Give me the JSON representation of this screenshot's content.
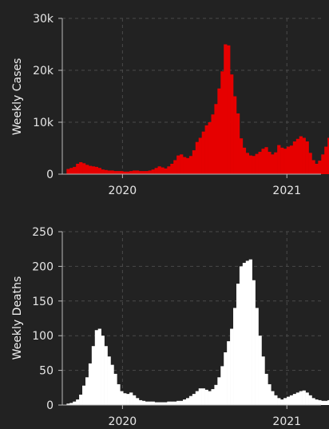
{
  "colors": {
    "background": "#222222",
    "cases_bar": "#e60000",
    "deaths_bar": "#ffffff"
  },
  "chart_data": [
    {
      "type": "bar",
      "ylabel": "Weekly Cases",
      "ylim": [
        0,
        30000
      ],
      "yticks": [
        0,
        10000,
        20000,
        30000
      ],
      "ytick_labels": [
        "0",
        "10k",
        "20k",
        "30k"
      ],
      "xticks": [
        "2020-01-01",
        "2021-01-01"
      ],
      "xtick_labels": [
        "2020",
        "2021"
      ],
      "grid": true,
      "x_start": "2019-09-02",
      "x_interval_days": 7,
      "values": [
        1000,
        1200,
        1400,
        2000,
        2300,
        2100,
        1800,
        1600,
        1500,
        1400,
        1200,
        900,
        800,
        700,
        700,
        600,
        600,
        600,
        500,
        500,
        600,
        700,
        700,
        600,
        600,
        600,
        700,
        900,
        1200,
        1500,
        1300,
        1100,
        1500,
        2000,
        2700,
        3600,
        3800,
        3300,
        3100,
        3500,
        4600,
        6200,
        7000,
        8200,
        9400,
        10000,
        11500,
        13500,
        16500,
        19800,
        25000,
        24800,
        19200,
        15000,
        11700,
        6900,
        5100,
        4100,
        3600,
        3500,
        3900,
        4300,
        4900,
        5200,
        4300,
        3800,
        4200,
        5600,
        5100,
        4900,
        5300,
        5500,
        6300,
        6800,
        7300,
        7000,
        6300,
        4100,
        2700,
        2000,
        2600,
        3800,
        5300,
        7000,
        6500,
        6000,
        6400,
        7200,
        6900,
        6600,
        7000,
        5500,
        3500
      ]
    },
    {
      "type": "bar",
      "ylabel": "Weekly Deaths",
      "ylim": [
        0,
        250
      ],
      "yticks": [
        0,
        50,
        100,
        150,
        200,
        250
      ],
      "ytick_labels": [
        "0",
        "50",
        "100",
        "150",
        "200",
        "250"
      ],
      "xticks": [
        "2020-01-01",
        "2021-01-01"
      ],
      "xtick_labels": [
        "2020",
        "2021"
      ],
      "grid": true,
      "x_start": "2019-09-02",
      "x_interval_days": 7,
      "values": [
        2,
        3,
        5,
        8,
        15,
        28,
        40,
        60,
        85,
        108,
        110,
        100,
        85,
        70,
        58,
        45,
        30,
        20,
        17,
        16,
        18,
        14,
        10,
        7,
        6,
        5,
        5,
        5,
        4,
        4,
        4,
        4,
        5,
        5,
        5,
        6,
        6,
        8,
        10,
        13,
        16,
        20,
        24,
        24,
        22,
        20,
        23,
        29,
        40,
        56,
        76,
        92,
        110,
        140,
        175,
        200,
        205,
        208,
        210,
        180,
        140,
        100,
        70,
        45,
        30,
        20,
        14,
        10,
        8,
        10,
        12,
        14,
        16,
        18,
        20,
        21,
        18,
        14,
        10,
        8,
        7,
        6,
        6,
        7,
        8,
        10,
        12,
        14,
        11,
        9,
        9,
        12,
        14,
        17,
        22,
        24
      ]
    }
  ]
}
